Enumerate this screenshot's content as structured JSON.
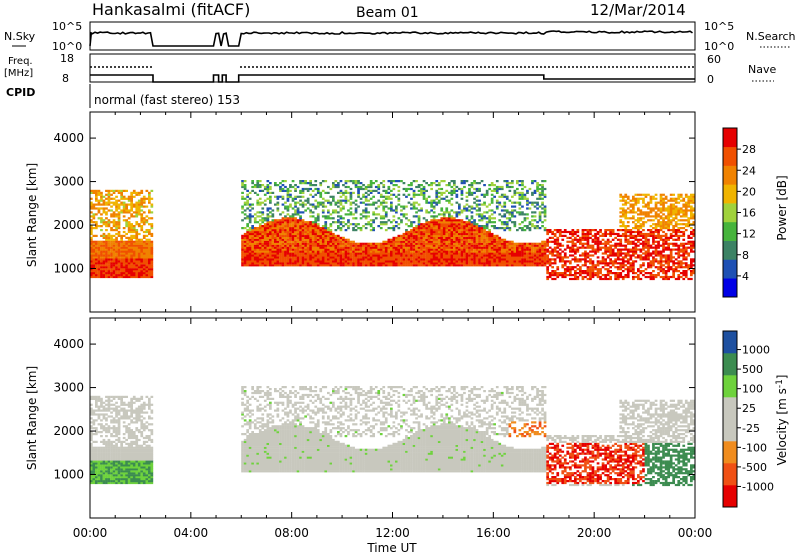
{
  "header": {
    "station": "Hankasalmi (fitACF)",
    "beam": "Beam 01",
    "date": "12/Mar/2014"
  },
  "params": {
    "nsky_label": "N.Sky",
    "nsky_ticks": [
      "10^5",
      "10^0"
    ],
    "nsearch_label": "N.Search",
    "nsearch_ticks": [
      "10^5",
      "10^0"
    ],
    "freq_label": "Freq.",
    "freq_unit": "[MHz]",
    "freq_ticks": [
      "18",
      "8"
    ],
    "nave_label": "Nave",
    "nave_ticks": [
      "60",
      "0"
    ],
    "cpid_label": "CPID",
    "cpid_text": "normal (fast stereo) 153"
  },
  "x_axis": {
    "label": "Time UT",
    "ticks": [
      "00:00",
      "04:00",
      "08:00",
      "12:00",
      "16:00",
      "20:00",
      "00:00"
    ]
  },
  "colors": {
    "power": [
      "#0000e6",
      "#1e50b4",
      "#3c8264",
      "#46b43c",
      "#a0d23c",
      "#f0b400",
      "#f08200",
      "#f05000",
      "#e60000"
    ],
    "velocity": [
      "#e60000",
      "#f05014",
      "#f08c1e",
      "#c8c8be",
      "#c8c8be",
      "#6ed23c",
      "#3c8c50",
      "#1e50a0"
    ]
  },
  "chart_data": [
    {
      "type": "heatmap",
      "panel": "power",
      "ylabel": "Slant Range [km]",
      "y_ticks": [
        1000,
        2000,
        3000,
        4000
      ],
      "ylim": [
        0,
        4600
      ],
      "xlim_hours": [
        0,
        24
      ],
      "colorbar_label": "Power [dB]",
      "colorbar_ticks": [
        4,
        8,
        12,
        16,
        20,
        24,
        28
      ],
      "colorbar_range": [
        0,
        32
      ],
      "data_gaps_hours": [
        [
          2.5,
          4.9
        ],
        [
          5.1,
          5.25
        ],
        [
          5.4,
          5.9
        ]
      ]
    },
    {
      "type": "heatmap",
      "panel": "velocity",
      "ylabel": "Slant Range [km]",
      "y_ticks": [
        1000,
        2000,
        3000,
        4000
      ],
      "ylim": [
        0,
        4600
      ],
      "xlim_hours": [
        0,
        24
      ],
      "colorbar_label": "Velocity [m s-1]",
      "colorbar_ticks": [
        1000,
        500,
        100,
        25,
        -25,
        -100,
        -500,
        -1000
      ],
      "data_gaps_hours": [
        [
          2.5,
          4.9
        ],
        [
          5.1,
          5.25
        ],
        [
          5.4,
          5.9
        ]
      ]
    }
  ]
}
